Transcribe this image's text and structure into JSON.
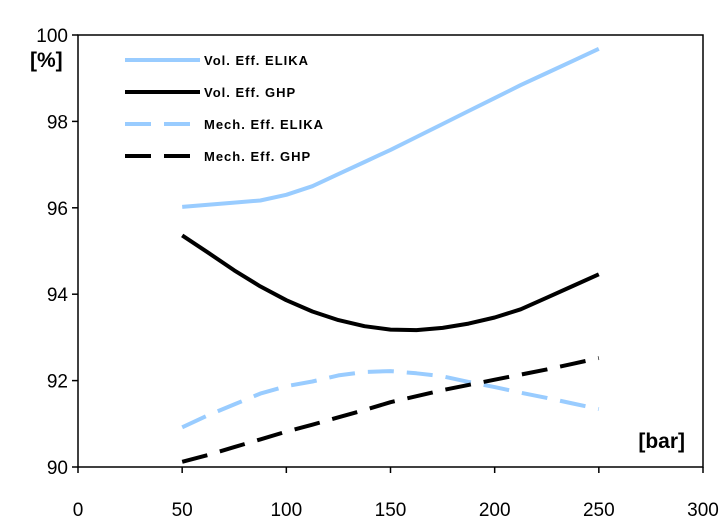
{
  "chart_data": {
    "type": "line",
    "title": "",
    "ylabel": "[%]",
    "xlabel": "[bar]",
    "xlim": [
      0,
      300
    ],
    "ylim": [
      90,
      100
    ],
    "x_ticks": [
      0,
      50,
      100,
      150,
      200,
      250,
      300
    ],
    "y_ticks": [
      90,
      92,
      94,
      96,
      98,
      100
    ],
    "grid": false,
    "legend_position": "top-left",
    "series": [
      {
        "name": "Vol. Eff. ELIKA",
        "color": "#99ccff",
        "dash": "solid",
        "x": [
          50,
          62.5,
          75,
          87.5,
          100,
          112.5,
          125,
          137.5,
          150,
          162.5,
          175,
          187.5,
          200,
          212.5,
          225,
          237.5,
          250
        ],
        "y": [
          96.02,
          96.07,
          96.12,
          96.17,
          96.3,
          96.5,
          96.78,
          97.06,
          97.34,
          97.64,
          97.94,
          98.24,
          98.54,
          98.84,
          99.12,
          99.4,
          99.68
        ]
      },
      {
        "name": "Vol. Eff. GHP",
        "color": "#000000",
        "dash": "solid",
        "x": [
          50,
          62.5,
          75,
          87.5,
          100,
          112.5,
          125,
          137.5,
          150,
          162.5,
          175,
          187.5,
          200,
          212.5,
          225,
          237.5,
          250
        ],
        "y": [
          95.36,
          94.96,
          94.55,
          94.18,
          93.86,
          93.6,
          93.4,
          93.26,
          93.18,
          93.17,
          93.22,
          93.32,
          93.46,
          93.65,
          93.92,
          94.19,
          94.46
        ]
      },
      {
        "name": "Mech. Eff. ELIKA",
        "color": "#99ccff",
        "dash": "dashed",
        "x": [
          50,
          62.5,
          75,
          87.5,
          100,
          112.5,
          125,
          137.5,
          150,
          162.5,
          175,
          187.5,
          200,
          212.5,
          225,
          237.5,
          250
        ],
        "y": [
          90.92,
          91.2,
          91.45,
          91.7,
          91.87,
          91.98,
          92.12,
          92.2,
          92.22,
          92.17,
          92.1,
          91.97,
          91.85,
          91.72,
          91.6,
          91.47,
          91.34
        ]
      },
      {
        "name": "Mech. Eff. GHP",
        "color": "#000000",
        "dash": "dashed",
        "x": [
          50,
          62.5,
          75,
          87.5,
          100,
          112.5,
          125,
          137.5,
          150,
          162.5,
          175,
          187.5,
          200,
          212.5,
          225,
          237.5,
          250
        ],
        "y": [
          90.12,
          90.28,
          90.46,
          90.64,
          90.82,
          90.98,
          91.15,
          91.32,
          91.5,
          91.64,
          91.78,
          91.9,
          92.02,
          92.14,
          92.26,
          92.39,
          92.52
        ]
      }
    ]
  }
}
